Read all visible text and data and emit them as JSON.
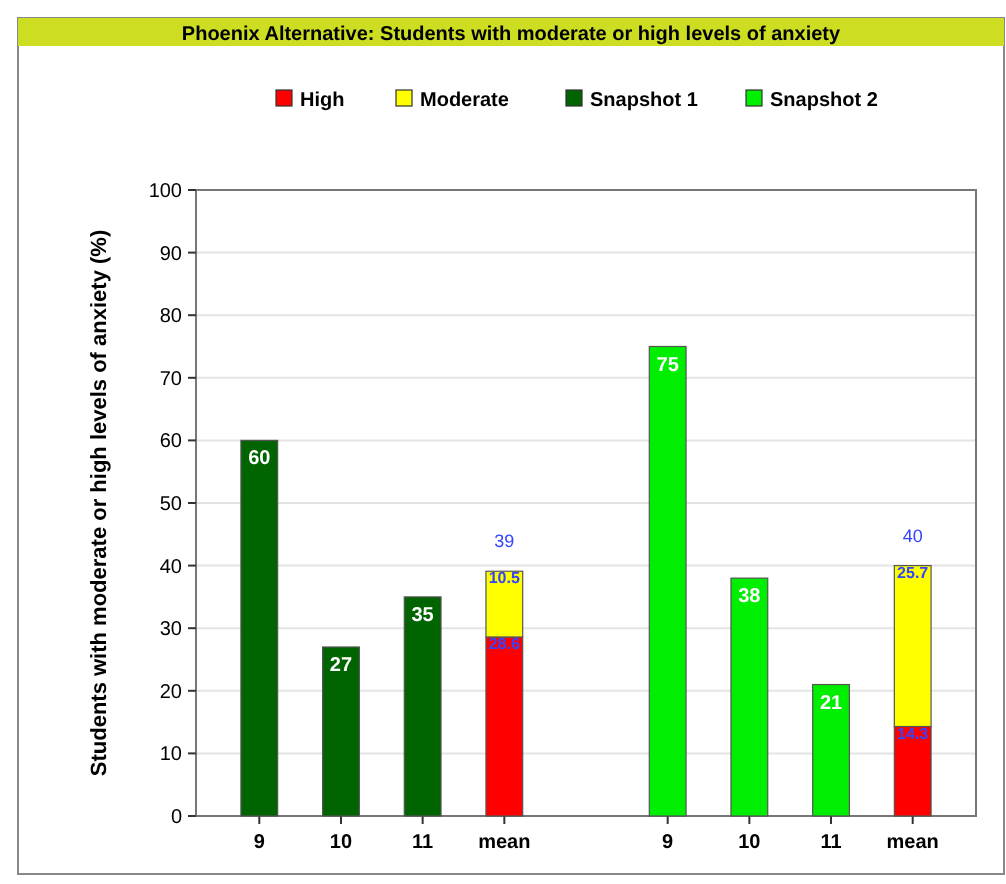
{
  "chart_data": {
    "type": "bar",
    "title": "Phoenix Alternative: Students with moderate or high levels of anxiety",
    "ylabel": "Students with moderate or high levels of anxiety (%)",
    "categories": [
      "9",
      "10",
      "11",
      "mean",
      null,
      "9",
      "10",
      "11",
      "mean"
    ],
    "series": [
      {
        "name": "High",
        "color": "#ff0000",
        "values": [
          null,
          null,
          null,
          28.6,
          null,
          null,
          null,
          null,
          14.3
        ]
      },
      {
        "name": "Moderate",
        "color": "#ffff00",
        "values": [
          null,
          null,
          null,
          10.5,
          null,
          null,
          null,
          null,
          25.7
        ]
      },
      {
        "name": "Snapshot 1",
        "color": "#006400",
        "values": [
          60,
          27,
          35,
          null,
          null,
          null,
          null,
          null,
          null
        ]
      },
      {
        "name": "Snapshot 2",
        "color": "#00ee00",
        "values": [
          null,
          null,
          null,
          null,
          null,
          75,
          38,
          21,
          null
        ]
      }
    ],
    "stacked": true,
    "totals": [
      null,
      null,
      null,
      "39",
      null,
      null,
      null,
      null,
      "40"
    ],
    "data_labels": true,
    "ylim": [
      0,
      100
    ],
    "yticks": [
      0,
      10,
      20,
      30,
      40,
      50,
      60,
      70,
      80,
      90,
      100
    ],
    "grid": "y",
    "legend": "top"
  }
}
